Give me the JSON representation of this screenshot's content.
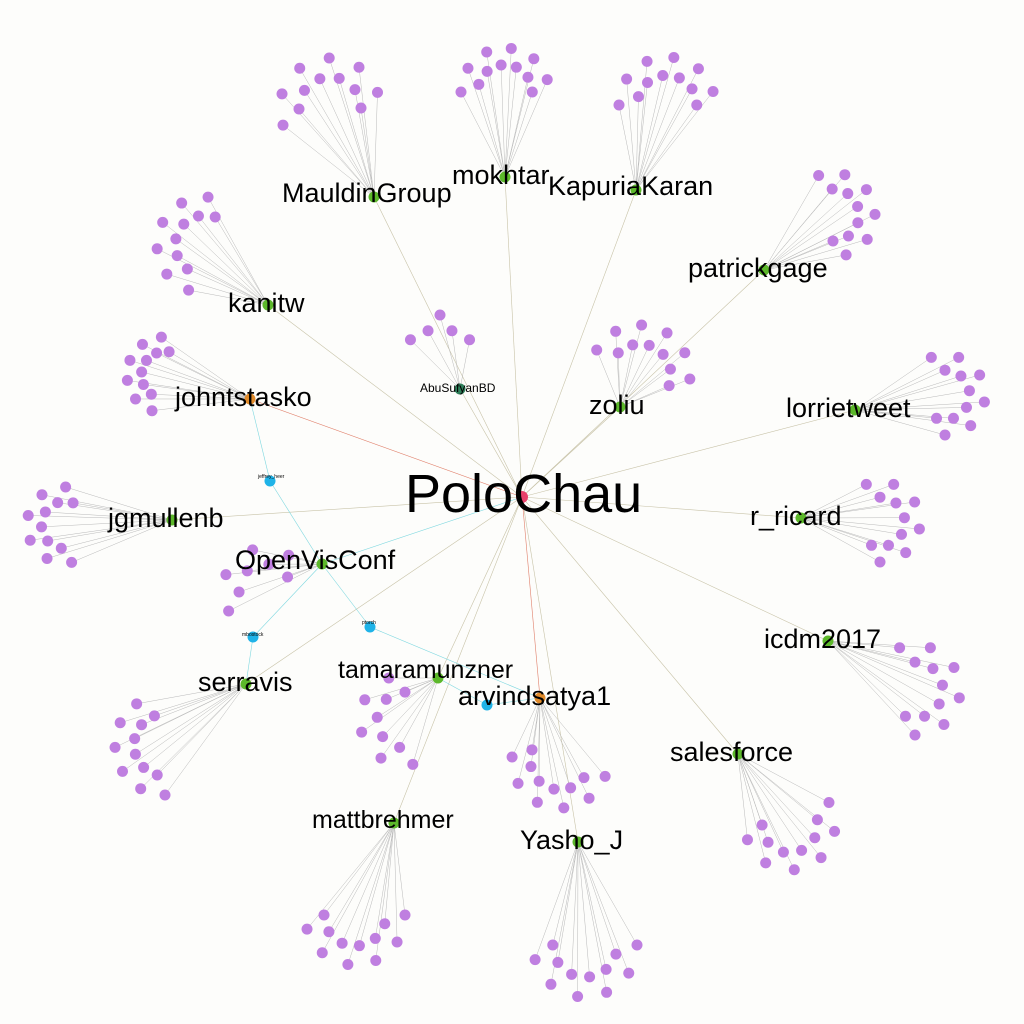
{
  "colors": {
    "background": "#fdfdfb",
    "center": "#e8406a",
    "hub_green": "#5cb82a",
    "hub_orange": "#e08a2a",
    "hub_darkgreen": "#2f7f5a",
    "bridge_blue": "#1fb3e8",
    "leaf_purple": "#bf7fe0",
    "edge_gray": "#c8c3a8",
    "edge_red": "#e07f6a",
    "edge_cyan": "#7fd8e0"
  },
  "center": {
    "id": "PoloChau",
    "label": "PoloChau",
    "color": "#e8406a"
  },
  "hubs": [
    {
      "id": "mokhtar",
      "label": "mokhtar",
      "color": "#5cb82a",
      "leaves": 12
    },
    {
      "id": "KapuriaKaran",
      "label": "KapuriaKaran",
      "color": "#5cb82a",
      "leaves": 12
    },
    {
      "id": "MauldinGroup",
      "label": "MauldinGroup",
      "color": "#5cb82a",
      "leaves": 12
    },
    {
      "id": "patrickgage",
      "label": "patrickgage",
      "color": "#5cb82a",
      "leaves": 12
    },
    {
      "id": "kanitw",
      "label": "kanitw",
      "color": "#5cb82a",
      "leaves": 12
    },
    {
      "id": "johntstasko",
      "label": "johntstasko",
      "color": "#e08a2a",
      "leaves": 12
    },
    {
      "id": "AbuSufyanBD",
      "label": "AbuSufyanBD",
      "color": "#2f7f5a",
      "leaves": 5
    },
    {
      "id": "zoliu",
      "label": "zoliu",
      "color": "#5cb82a",
      "leaves": 12
    },
    {
      "id": "lorrietweet",
      "label": "lorrietweet",
      "color": "#5cb82a",
      "leaves": 12
    },
    {
      "id": "jgmullenb",
      "label": "jgmullenb",
      "color": "#5cb82a",
      "leaves": 12
    },
    {
      "id": "r_ricard",
      "label": "r_ricard",
      "color": "#5cb82a",
      "leaves": 12
    },
    {
      "id": "OpenVisConf",
      "label": "OpenVisConf",
      "color": "#5cb82a",
      "leaves": 8
    },
    {
      "id": "icdm2017",
      "label": "icdm2017",
      "color": "#5cb82a",
      "leaves": 12
    },
    {
      "id": "serravis",
      "label": "serravis",
      "color": "#5cb82a",
      "leaves": 12
    },
    {
      "id": "tamaramunzner",
      "label": "tamaramunzner",
      "color": "#5cb82a",
      "leaves": 10
    },
    {
      "id": "arvindsatya1",
      "label": "arvindsatya1",
      "color": "#e08a2a",
      "leaves": 12
    },
    {
      "id": "salesforce",
      "label": "salesforce",
      "color": "#5cb82a",
      "leaves": 12
    },
    {
      "id": "mattbrehmer",
      "label": "mattbrehmer",
      "color": "#5cb82a",
      "leaves": 12
    },
    {
      "id": "Yasho_J",
      "label": "Yasho_J",
      "color": "#5cb82a",
      "leaves": 12
    }
  ],
  "bridges": [
    {
      "id": "jeffrey_heer",
      "label": "jeffrey_heer",
      "color": "#1fb3e8"
    },
    {
      "id": "mbostock",
      "label": "mbostock",
      "color": "#1fb3e8"
    },
    {
      "id": "ptorch",
      "label": "ptorch",
      "color": "#1fb3e8"
    },
    {
      "id": "bridge4",
      "label": "",
      "color": "#1fb3e8"
    }
  ]
}
